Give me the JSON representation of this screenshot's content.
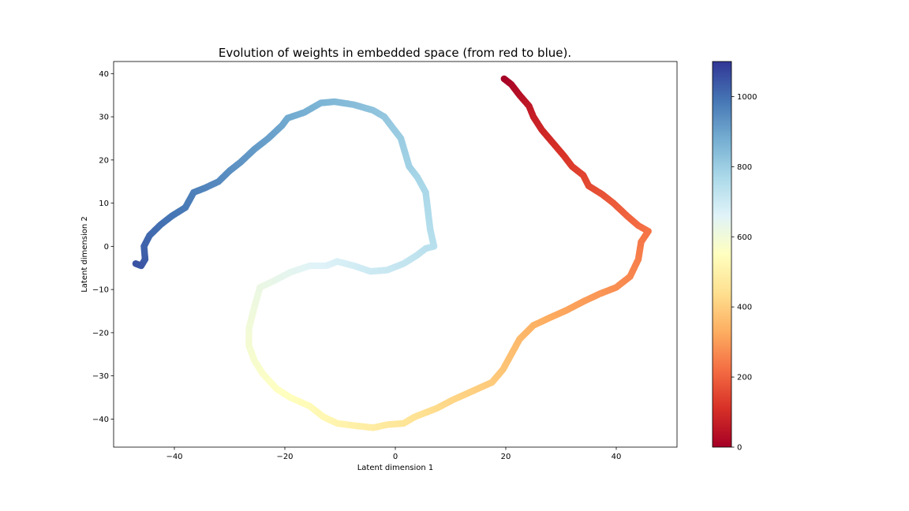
{
  "chart_data": {
    "type": "scatter",
    "title": "Evolution of weights in embedded space (from red to blue).",
    "xlabel": "Latent dimension 1",
    "ylabel": "Latent dimension 2",
    "xlim": [
      -51,
      51
    ],
    "ylim": [
      -46.5,
      42.8
    ],
    "xticks": [
      -40,
      -20,
      0,
      20,
      40
    ],
    "yticks": [
      -40,
      -30,
      -20,
      -10,
      0,
      10,
      20,
      30,
      40
    ],
    "xtick_labels": [
      "−40",
      "−20",
      "0",
      "20",
      "40"
    ],
    "ytick_labels": [
      "−40",
      "−30",
      "−20",
      "−10",
      "0",
      "10",
      "20",
      "30",
      "40"
    ],
    "grid": false,
    "colormap": "RdYlBu",
    "color_by": "iteration",
    "colorbar": {
      "range": [
        0,
        1100
      ],
      "ticks": [
        0,
        200,
        400,
        600,
        800,
        1000
      ],
      "tick_labels": [
        "0",
        "200",
        "400",
        "600",
        "800",
        "1000"
      ]
    },
    "points": [
      {
        "x": 19.7,
        "y": 38.8,
        "c": 0
      },
      {
        "x": 21.0,
        "y": 37.5,
        "c": 15
      },
      {
        "x": 22.5,
        "y": 35.0,
        "c": 35
      },
      {
        "x": 24.2,
        "y": 32.5,
        "c": 55
      },
      {
        "x": 25.0,
        "y": 30.0,
        "c": 70
      },
      {
        "x": 26.5,
        "y": 27.0,
        "c": 85
      },
      {
        "x": 28.5,
        "y": 24.0,
        "c": 100
      },
      {
        "x": 30.5,
        "y": 21.0,
        "c": 115
      },
      {
        "x": 32.0,
        "y": 18.5,
        "c": 130
      },
      {
        "x": 34.0,
        "y": 16.5,
        "c": 145
      },
      {
        "x": 35.0,
        "y": 14.0,
        "c": 155
      },
      {
        "x": 37.5,
        "y": 12.0,
        "c": 170
      },
      {
        "x": 39.5,
        "y": 10.0,
        "c": 185
      },
      {
        "x": 42.0,
        "y": 7.0,
        "c": 200
      },
      {
        "x": 44.0,
        "y": 4.8,
        "c": 215
      },
      {
        "x": 45.8,
        "y": 3.5,
        "c": 228
      },
      {
        "x": 44.5,
        "y": 1.0,
        "c": 238
      },
      {
        "x": 44.0,
        "y": -3.0,
        "c": 250
      },
      {
        "x": 42.5,
        "y": -7.0,
        "c": 262
      },
      {
        "x": 40.0,
        "y": -9.5,
        "c": 275
      },
      {
        "x": 37.0,
        "y": -11.0,
        "c": 288
      },
      {
        "x": 34.0,
        "y": -12.8,
        "c": 300
      },
      {
        "x": 31.0,
        "y": -14.8,
        "c": 312
      },
      {
        "x": 28.0,
        "y": -16.5,
        "c": 325
      },
      {
        "x": 25.0,
        "y": -18.3,
        "c": 338
      },
      {
        "x": 22.5,
        "y": -21.5,
        "c": 352
      },
      {
        "x": 21.0,
        "y": -25.0,
        "c": 365
      },
      {
        "x": 19.5,
        "y": -28.5,
        "c": 378
      },
      {
        "x": 17.5,
        "y": -31.5,
        "c": 390
      },
      {
        "x": 14.0,
        "y": -33.5,
        "c": 402
      },
      {
        "x": 10.5,
        "y": -35.5,
        "c": 415
      },
      {
        "x": 7.5,
        "y": -37.5,
        "c": 428
      },
      {
        "x": 5.5,
        "y": -38.5,
        "c": 438
      },
      {
        "x": 3.5,
        "y": -39.5,
        "c": 448
      },
      {
        "x": 1.5,
        "y": -41.0,
        "c": 458
      },
      {
        "x": -1.5,
        "y": -41.3,
        "c": 470
      },
      {
        "x": -4.0,
        "y": -42.0,
        "c": 482
      },
      {
        "x": -7.5,
        "y": -41.5,
        "c": 495
      },
      {
        "x": -10.5,
        "y": -41.0,
        "c": 508
      },
      {
        "x": -13.0,
        "y": -39.5,
        "c": 520
      },
      {
        "x": -15.5,
        "y": -37.0,
        "c": 532
      },
      {
        "x": -19.0,
        "y": -35.0,
        "c": 545
      },
      {
        "x": -21.5,
        "y": -33.0,
        "c": 555
      },
      {
        "x": -24.0,
        "y": -29.5,
        "c": 567
      },
      {
        "x": -25.5,
        "y": -26.5,
        "c": 577
      },
      {
        "x": -26.5,
        "y": -23.0,
        "c": 587
      },
      {
        "x": -26.5,
        "y": -19.0,
        "c": 597
      },
      {
        "x": -25.5,
        "y": -14.0,
        "c": 608
      },
      {
        "x": -24.5,
        "y": -9.5,
        "c": 620
      },
      {
        "x": -22.0,
        "y": -8.0,
        "c": 630
      },
      {
        "x": -19.0,
        "y": -6.0,
        "c": 642
      },
      {
        "x": -15.5,
        "y": -4.5,
        "c": 655
      },
      {
        "x": -12.5,
        "y": -4.5,
        "c": 665
      },
      {
        "x": -10.5,
        "y": -3.5,
        "c": 675
      },
      {
        "x": -7.5,
        "y": -4.5,
        "c": 687
      },
      {
        "x": -4.5,
        "y": -5.8,
        "c": 698
      },
      {
        "x": -1.5,
        "y": -5.5,
        "c": 708
      },
      {
        "x": 1.5,
        "y": -4.0,
        "c": 718
      },
      {
        "x": 4.0,
        "y": -2.0,
        "c": 728
      },
      {
        "x": 5.5,
        "y": -0.5,
        "c": 736
      },
      {
        "x": 7.0,
        "y": 0.0,
        "c": 742
      },
      {
        "x": 6.3,
        "y": 4.0,
        "c": 752
      },
      {
        "x": 5.5,
        "y": 12.5,
        "c": 768
      },
      {
        "x": 4.0,
        "y": 16.0,
        "c": 778
      },
      {
        "x": 2.5,
        "y": 18.5,
        "c": 788
      },
      {
        "x": 1.0,
        "y": 25.0,
        "c": 800
      },
      {
        "x": -2.0,
        "y": 30.0,
        "c": 815
      },
      {
        "x": -4.0,
        "y": 31.5,
        "c": 825
      },
      {
        "x": -7.5,
        "y": 32.8,
        "c": 838
      },
      {
        "x": -11.0,
        "y": 33.5,
        "c": 850
      },
      {
        "x": -13.5,
        "y": 33.2,
        "c": 860
      },
      {
        "x": -16.5,
        "y": 31.0,
        "c": 872
      },
      {
        "x": -19.5,
        "y": 29.7,
        "c": 884
      },
      {
        "x": -20.5,
        "y": 28.0,
        "c": 892
      },
      {
        "x": -23.0,
        "y": 25.0,
        "c": 904
      },
      {
        "x": -25.5,
        "y": 22.5,
        "c": 915
      },
      {
        "x": -28.0,
        "y": 19.5,
        "c": 927
      },
      {
        "x": -30.0,
        "y": 17.5,
        "c": 937
      },
      {
        "x": -32.0,
        "y": 15.0,
        "c": 948
      },
      {
        "x": -34.5,
        "y": 13.5,
        "c": 958
      },
      {
        "x": -36.5,
        "y": 12.5,
        "c": 967
      },
      {
        "x": -38.0,
        "y": 9.0,
        "c": 978
      },
      {
        "x": -40.5,
        "y": 7.0,
        "c": 988
      },
      {
        "x": -42.5,
        "y": 5.0,
        "c": 998
      },
      {
        "x": -44.5,
        "y": 2.5,
        "c": 1010
      },
      {
        "x": -45.5,
        "y": 0.0,
        "c": 1020
      },
      {
        "x": -45.3,
        "y": -3.0,
        "c": 1032
      },
      {
        "x": -46.0,
        "y": -4.5,
        "c": 1042
      },
      {
        "x": -47.0,
        "y": -4.0,
        "c": 1050
      }
    ]
  }
}
